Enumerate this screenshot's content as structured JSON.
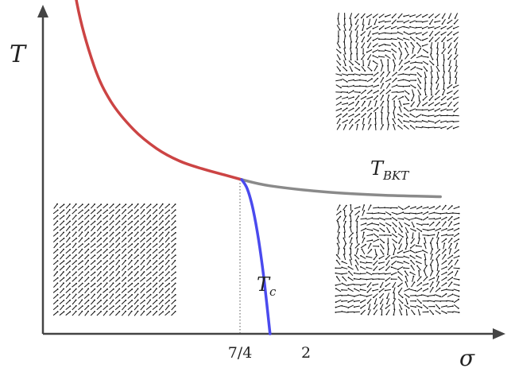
{
  "chart_data": {
    "type": "line",
    "xlabel": "σ",
    "ylabel": "T",
    "x_ticks": [
      {
        "value": 1.75,
        "label": "7/4"
      },
      {
        "value": 2.0,
        "label": "2"
      }
    ],
    "series": [
      {
        "name": "",
        "color": "#cc4444",
        "x": [
          0.2,
          0.3,
          0.45,
          0.6,
          0.8,
          1.0,
          1.2,
          1.4,
          1.6,
          1.75
        ],
        "y": [
          2.65,
          2.12,
          1.72,
          1.49,
          1.31,
          1.19,
          1.11,
          1.06,
          1.02,
          0.99
        ]
      },
      {
        "name": "T_BKT",
        "color": "#8a8a8a",
        "x": [
          1.75,
          2.0,
          2.5,
          3.0,
          3.5
        ],
        "y": [
          0.99,
          0.95,
          0.91,
          0.89,
          0.88
        ]
      },
      {
        "name": "T_c",
        "color": "#4a4aee",
        "x": [
          1.75,
          1.8,
          1.85,
          1.9,
          1.95,
          2.0
        ],
        "y": [
          0.99,
          0.93,
          0.8,
          0.6,
          0.33,
          0.0
        ]
      }
    ],
    "annotations": [
      {
        "text": "T",
        "sub": "BKT"
      },
      {
        "text": "T",
        "sub": "c"
      }
    ],
    "colors": {
      "axis": "#444444",
      "divider": "#555555",
      "arrow": "#111111"
    },
    "insets": [
      {
        "name": "ordered-spin-inset",
        "pattern": "ordered"
      },
      {
        "name": "bkt-spin-inset",
        "pattern": "vortex-mild"
      },
      {
        "name": "disordered-spin-inset",
        "pattern": "vortex-strong"
      }
    ]
  }
}
